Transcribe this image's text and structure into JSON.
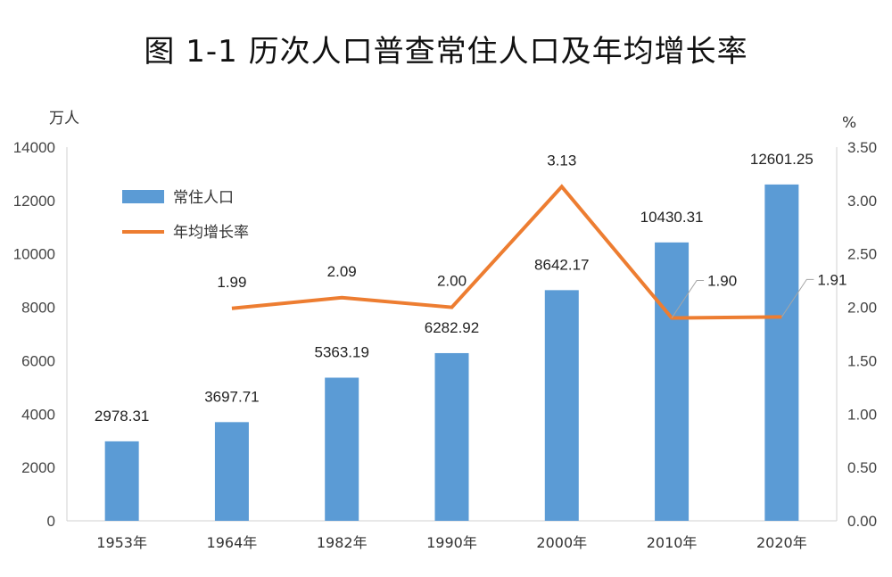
{
  "title": "图 1-1    历次人口普查常住人口及年均增长率",
  "chart_data": {
    "type": "bar",
    "categories": [
      "1953年",
      "1964年",
      "1982年",
      "1990年",
      "2000年",
      "2010年",
      "2020年"
    ],
    "left_axis": {
      "unit": "万人",
      "ylim": [
        0,
        14000
      ],
      "ticks": [
        "0",
        "2000",
        "4000",
        "6000",
        "8000",
        "10000",
        "12000",
        "14000"
      ]
    },
    "right_axis": {
      "unit": "%",
      "ylim": [
        0,
        3.5
      ],
      "ticks": [
        "0.00",
        "0.50",
        "1.00",
        "1.50",
        "2.00",
        "2.50",
        "3.00",
        "3.50"
      ]
    },
    "series": [
      {
        "name": "常住人口",
        "type": "bar",
        "axis": "left",
        "color": "#5b9bd5",
        "values": [
          2978.31,
          3697.71,
          5363.19,
          6282.92,
          8642.17,
          10430.31,
          12601.25
        ],
        "labels": [
          "2978.31",
          "3697.71",
          "5363.19",
          "6282.92",
          "8642.17",
          "10430.31",
          "12601.25"
        ]
      },
      {
        "name": "年均增长率",
        "type": "line",
        "axis": "right",
        "color": "#ed7d31",
        "values": [
          null,
          1.99,
          2.09,
          2.0,
          3.13,
          1.9,
          1.91
        ],
        "labels": [
          null,
          "1.99",
          "2.09",
          "2.00",
          "3.13",
          "1.90",
          "1.91"
        ]
      }
    ],
    "legend_position": "top-left",
    "grid": false
  }
}
